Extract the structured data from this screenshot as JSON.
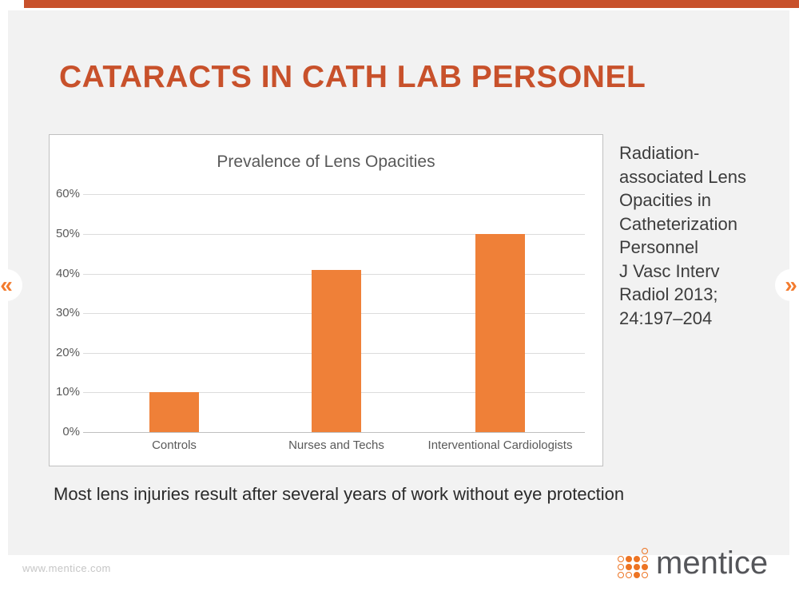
{
  "page": {
    "background": "#ffffff"
  },
  "top_bar": {
    "color": "#C8512B"
  },
  "slide": {
    "background": "#F2F2F2",
    "title": "CATARACTS IN CATH LAB PERSONEL",
    "title_color": "#C8512B",
    "citation": "Radiation-\nassociated Lens\nOpacities in\nCatheterization\nPersonnel\nJ Vasc Interv\nRadiol 2013;\n24:197–204",
    "note": "Most lens injuries result after several years of work without eye protection"
  },
  "chart_data": {
    "type": "bar",
    "title": "Prevalence of Lens Opacities",
    "categories": [
      "Controls",
      "Nurses and Techs",
      "Interventional Cardiologists"
    ],
    "values": [
      10,
      41,
      50
    ],
    "unit": "%",
    "xlabel": "",
    "ylabel": "",
    "ylim": [
      0,
      60
    ],
    "ytick_step": 10,
    "ytick_labels": [
      "0%",
      "10%",
      "20%",
      "30%",
      "40%",
      "50%",
      "60%"
    ],
    "bar_color": "#EF8038",
    "grid": true,
    "legend": false
  },
  "nav": {
    "prev": "«",
    "next": "»",
    "arrow_color": "#F37B2E"
  },
  "footer": {
    "url": "www.mentice.com",
    "logo_text": "mentice",
    "logo_dot_color": "#ED7423",
    "logo_dot_pattern": [
      [
        0,
        0,
        0,
        1
      ],
      [
        1,
        2,
        2,
        1
      ],
      [
        1,
        2,
        2,
        2
      ],
      [
        1,
        1,
        2,
        1
      ]
    ]
  }
}
